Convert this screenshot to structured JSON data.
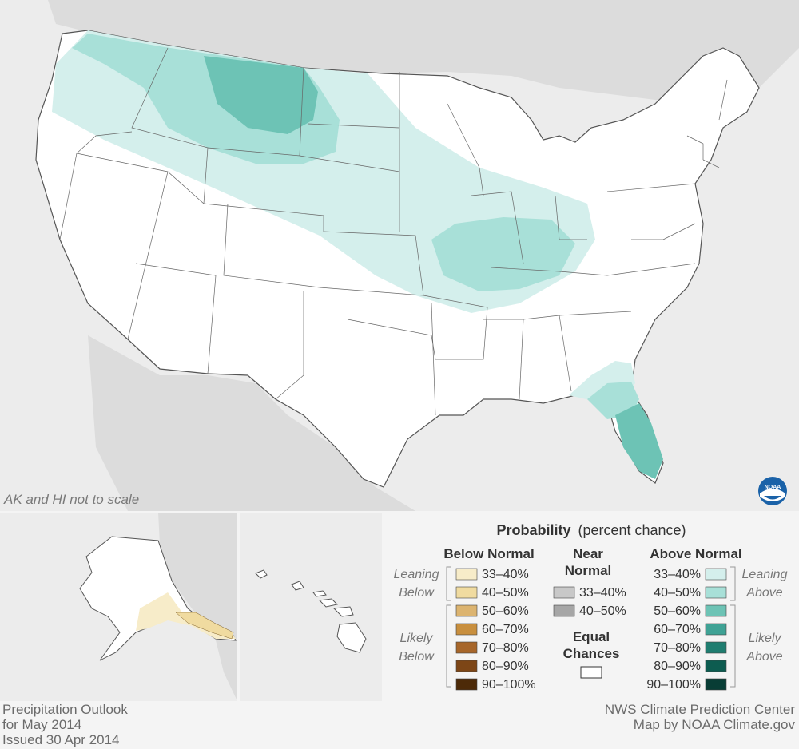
{
  "colors": {
    "below": [
      "#f7ecc9",
      "#f0dba0",
      "#dcb470",
      "#c88f3e",
      "#a7662a",
      "#7d4616",
      "#4d2a08"
    ],
    "near": [
      "#c8c8c8",
      "#a6a6a6"
    ],
    "above": [
      "#d4efec",
      "#a8e0d8",
      "#6dc3b5",
      "#3fa295",
      "#1f7d70",
      "#0d5c50",
      "#083d35"
    ],
    "equal": "#ffffff",
    "background": "#ececec"
  },
  "map": {
    "scale_note": "AK and HI not to scale",
    "logo": "noaa-logo"
  },
  "legend": {
    "title": "Probability",
    "title_note": "(percent chance)",
    "below_normal": "Below Normal",
    "near_normal_line1": "Near",
    "near_normal_line2": "Normal",
    "above_normal": "Above Normal",
    "equal_line1": "Equal",
    "equal_line2": "Chances",
    "leaning_below_1": "Leaning",
    "leaning_below_2": "Below",
    "likely_below_1": "Likely",
    "likely_below_2": "Below",
    "leaning_above_1": "Leaning",
    "leaning_above_2": "Above",
    "likely_above_1": "Likely",
    "likely_above_2": "Above",
    "below_ranges": [
      "33–40%",
      "40–50%",
      "50–60%",
      "60–70%",
      "70–80%",
      "80–90%",
      "90–100%"
    ],
    "near_ranges": [
      "33–40%",
      "40–50%"
    ],
    "above_ranges": [
      "33–40%",
      "40–50%",
      "50–60%",
      "60–70%",
      "70–80%",
      "80–90%",
      "90–100%"
    ]
  },
  "footer": {
    "left_line1": "Precipitation Outlook",
    "left_line2": "for May 2014",
    "left_line3": "Issued 30 Apr 2014",
    "right_line1": "NWS Climate Prediction Center",
    "right_line2": "Map by NOAA Climate.gov"
  }
}
